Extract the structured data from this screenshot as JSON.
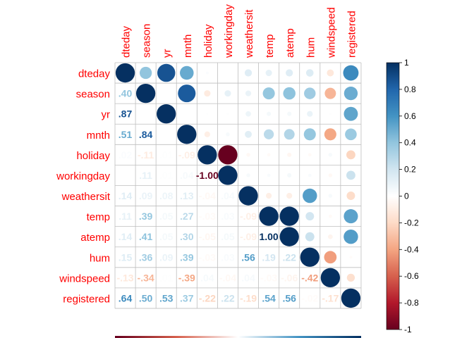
{
  "chart_data": {
    "type": "heatmap",
    "layout": "mixed (upper triangle: circles, lower triangle: numbers)",
    "variables": [
      "dteday",
      "season",
      "yr",
      "mnth",
      "holiday",
      "workingday",
      "weathersit",
      "temp",
      "atemp",
      "hum",
      "windspeed",
      "registered"
    ],
    "matrix": [
      [
        1.0,
        0.4,
        0.87,
        0.51,
        0.02,
        0.0,
        0.14,
        0.11,
        0.14,
        0.15,
        -0.13,
        0.64
      ],
      [
        0.4,
        1.0,
        0.0,
        0.84,
        -0.11,
        0.11,
        0.09,
        0.39,
        0.41,
        0.36,
        -0.34,
        0.5
      ],
      [
        0.87,
        0.0,
        1.0,
        0.0,
        0.01,
        0.01,
        0.08,
        0.05,
        0.05,
        0.09,
        0.01,
        0.53
      ],
      [
        0.51,
        0.84,
        0.0,
        1.0,
        -0.09,
        0.04,
        0.13,
        0.27,
        0.3,
        0.39,
        -0.39,
        0.37
      ],
      [
        0.02,
        -0.11,
        0.01,
        -0.09,
        1.0,
        -1.0,
        -0.04,
        -0.03,
        -0.05,
        -0.03,
        0.04,
        -0.22
      ],
      [
        0.0,
        0.11,
        0.01,
        0.04,
        -1.0,
        1.0,
        0.04,
        0.03,
        0.05,
        0.03,
        -0.04,
        0.22
      ],
      [
        0.14,
        0.09,
        0.08,
        0.13,
        -0.04,
        0.04,
        1.0,
        -0.09,
        -0.09,
        0.56,
        0.04,
        -0.19
      ],
      [
        0.11,
        0.39,
        0.05,
        0.27,
        -0.03,
        0.03,
        -0.09,
        1.0,
        1.0,
        0.19,
        -0.03,
        0.54
      ],
      [
        0.14,
        0.41,
        0.05,
        0.3,
        -0.05,
        0.05,
        -0.09,
        1.0,
        1.0,
        0.22,
        -0.06,
        0.56
      ],
      [
        0.15,
        0.36,
        0.09,
        0.39,
        -0.03,
        0.03,
        0.56,
        0.19,
        0.22,
        1.0,
        -0.42,
        -0.02
      ],
      [
        -0.13,
        -0.34,
        0.01,
        -0.39,
        0.04,
        -0.04,
        0.04,
        -0.03,
        -0.06,
        -0.42,
        1.0,
        -0.17
      ],
      [
        0.64,
        0.5,
        0.53,
        0.37,
        -0.22,
        0.22,
        -0.19,
        0.54,
        0.56,
        -0.02,
        -0.17,
        1.0
      ]
    ],
    "colorbar": {
      "range": [
        -1,
        1
      ],
      "ticks": [
        "1",
        "0.8",
        "0.6",
        "0.4",
        "0.2",
        "0",
        "-0.2",
        "-0.4",
        "-0.6",
        "-0.8",
        "-1"
      ]
    },
    "colors": {
      "negative": "#67001F",
      "neutral": "#FFFFFF",
      "positive": "#053061",
      "label": "#FF0000",
      "grid": "#BEBEBE"
    }
  }
}
